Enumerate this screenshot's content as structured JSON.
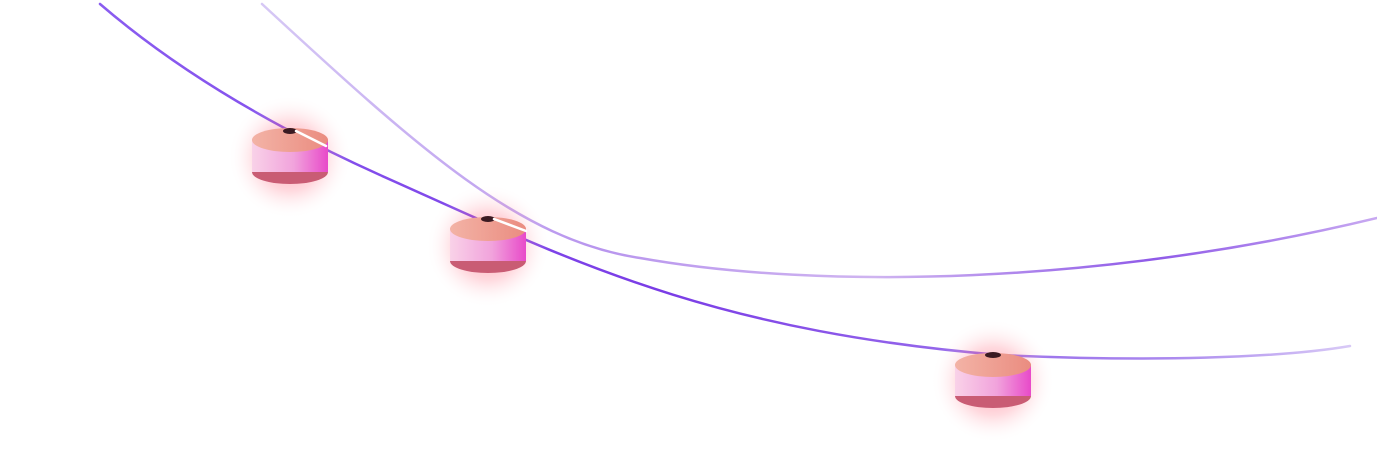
{
  "scene": {
    "background": "#ffffff",
    "curves": [
      {
        "name": "curve-front",
        "colors": [
          "#8a5cf0",
          "#7a3ce6",
          "#a987ee",
          "#d8c9f6"
        ]
      },
      {
        "name": "curve-back",
        "colors": [
          "#d6c8f5",
          "#b895ee",
          "#8f5ae8",
          "#c8a9f1"
        ]
      }
    ],
    "beads": [
      {
        "name": "bead-1",
        "top": "#ef9a8e",
        "body": [
          "#f7c4e0",
          "#ea4fcd"
        ],
        "bottom": "#c95c74",
        "glow": "#ff3b5c"
      },
      {
        "name": "bead-2",
        "top": "#ef9a8e",
        "body": [
          "#f7c4e0",
          "#ea4fcd"
        ],
        "bottom": "#c95c74",
        "glow": "#ff3b5c"
      },
      {
        "name": "bead-3",
        "top": "#ef9a8e",
        "body": [
          "#f7c4e0",
          "#ea4fcd"
        ],
        "bottom": "#c95c74",
        "glow": "#ff3b5c"
      }
    ]
  }
}
